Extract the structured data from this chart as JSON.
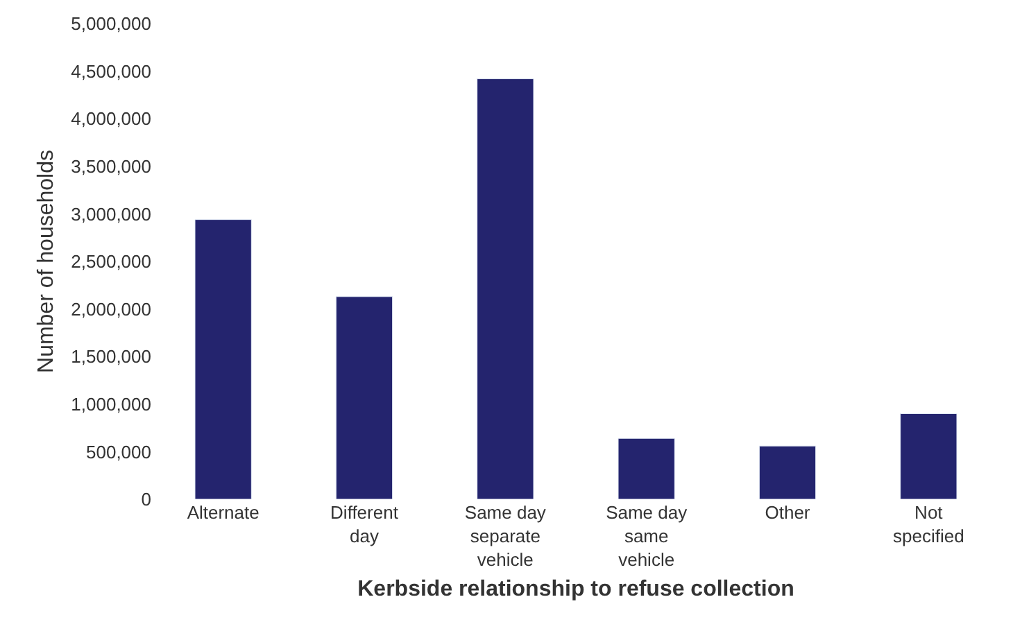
{
  "chart_data": {
    "type": "bar",
    "xlabel": "Kerbside relationship to refuse collection",
    "ylabel": "Number of households",
    "categories": [
      "Alternate",
      "Different day",
      "Same day separate vehicle",
      "Same day same vehicle",
      "Other",
      "Not specified"
    ],
    "values": [
      2940000,
      2130000,
      4420000,
      640000,
      560000,
      900000
    ],
    "color": "#24246e",
    "ylim": [
      0,
      5000000
    ],
    "yticks": [
      {
        "value": 0,
        "label": "0"
      },
      {
        "value": 500000,
        "label": "500,000"
      },
      {
        "value": 1000000,
        "label": "1,000,000"
      },
      {
        "value": 1500000,
        "label": "1,500,000"
      },
      {
        "value": 2000000,
        "label": "2,000,000"
      },
      {
        "value": 2500000,
        "label": "2,500,000"
      },
      {
        "value": 3000000,
        "label": "3,000,000"
      },
      {
        "value": 3500000,
        "label": "3,500,000"
      },
      {
        "value": 4000000,
        "label": "4,000,000"
      },
      {
        "value": 4500000,
        "label": "4,500,000"
      },
      {
        "value": 5000000,
        "label": "5,000,000"
      }
    ]
  }
}
